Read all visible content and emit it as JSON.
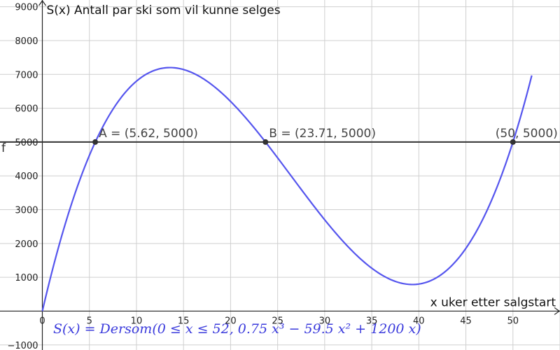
{
  "chart_data": {
    "type": "line",
    "title": "S(x) Antall par ski som vil kunne selges",
    "ylabel": "S(x) Antall par ski som vil kunne selges",
    "xlabel": "x uker etter salgstart",
    "xlim": [
      -4.5,
      55
    ],
    "ylim": [
      -1150,
      9200
    ],
    "x_ticks": [
      0,
      5,
      10,
      15,
      20,
      25,
      30,
      35,
      40,
      45,
      50
    ],
    "y_ticks": [
      -1000,
      1000,
      2000,
      3000,
      4000,
      5000,
      6000,
      7000,
      8000,
      9000
    ],
    "grid": true,
    "function": {
      "name": "S",
      "coefficients": {
        "a3": 0.75,
        "a2": -59.5,
        "a1": 1200,
        "a0": 0
      },
      "domain": [
        0,
        52
      ],
      "color": "#5555ee",
      "formula_text": "S(x)  =  Dersom(0 ≤ x ≤ 52, 0.75 x³ − 59.5 x² + 1200 x)"
    },
    "horizontal_line": {
      "name": "f",
      "y": 5000,
      "color": "#333333"
    },
    "points": [
      {
        "x": 5.62,
        "y": 5000,
        "label": "A = (5.62, 5000)"
      },
      {
        "x": 23.71,
        "y": 5000,
        "label": "B = (23.71, 5000)"
      },
      {
        "x": 50,
        "y": 5000,
        "label": "(50, 5000)"
      }
    ],
    "colors": {
      "grid": "#cfcfcf",
      "axis": "#222222",
      "point": "#333333"
    }
  }
}
